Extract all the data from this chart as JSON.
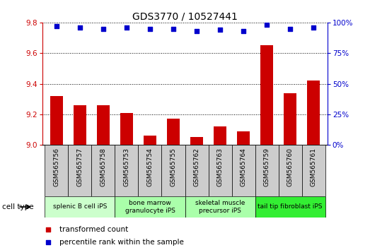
{
  "title": "GDS3770 / 10527441",
  "samples": [
    "GSM565756",
    "GSM565757",
    "GSM565758",
    "GSM565753",
    "GSM565754",
    "GSM565755",
    "GSM565762",
    "GSM565763",
    "GSM565764",
    "GSM565759",
    "GSM565760",
    "GSM565761"
  ],
  "transformed_count": [
    9.32,
    9.26,
    9.26,
    9.21,
    9.06,
    9.17,
    9.05,
    9.12,
    9.09,
    9.65,
    9.34,
    9.42
  ],
  "percentile_rank": [
    97,
    96,
    95,
    96,
    95,
    95,
    93,
    94,
    93,
    98,
    95,
    96
  ],
  "ylim_left": [
    9.0,
    9.8
  ],
  "ylim_right": [
    0,
    100
  ],
  "yticks_left": [
    9.0,
    9.2,
    9.4,
    9.6,
    9.8
  ],
  "yticks_right": [
    0,
    25,
    50,
    75,
    100
  ],
  "cell_colors": [
    "#ccffcc",
    "#aaffaa",
    "#aaffaa",
    "#33ee33"
  ],
  "cell_labels": [
    "splenic B cell iPS",
    "bone marrow\ngranulocyte iPS",
    "skeletal muscle\nprecursor iPS",
    "tail tip fibroblast iPS"
  ],
  "cell_ranges": [
    [
      0,
      3
    ],
    [
      3,
      6
    ],
    [
      6,
      9
    ],
    [
      9,
      12
    ]
  ],
  "bar_color": "#cc0000",
  "dot_color": "#0000cc",
  "bar_width": 0.55,
  "left_axis_color": "#cc0000",
  "right_axis_color": "#0000cc",
  "legend_items": [
    {
      "label": "transformed count",
      "color": "#cc0000"
    },
    {
      "label": "percentile rank within the sample",
      "color": "#0000cc"
    }
  ],
  "sample_box_color": "#cccccc",
  "title_fontsize": 10,
  "tick_fontsize": 7.5,
  "sample_fontsize": 6.5,
  "cell_fontsize": 6.5,
  "legend_fontsize": 7.5
}
